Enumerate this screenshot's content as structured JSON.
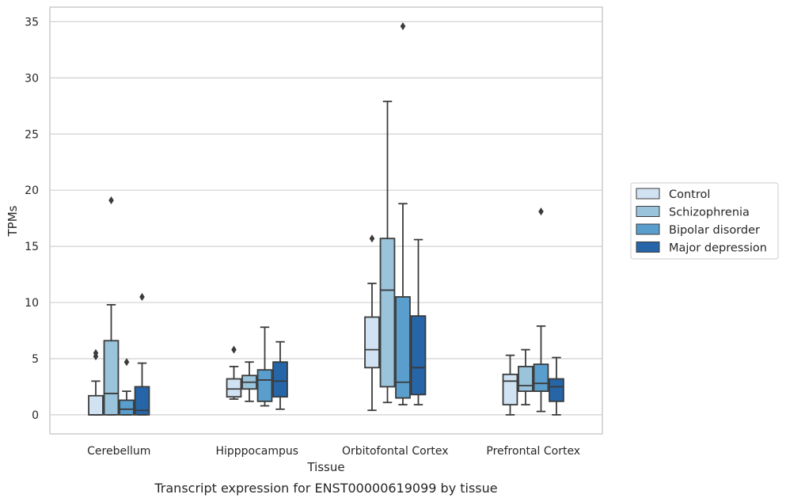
{
  "chart_data": {
    "type": "box",
    "xlabel": "Tissue",
    "ylabel": "TPMs",
    "caption": "Transcript expression for ENST00000619099 by tissue",
    "ylim": [
      -1.7,
      36.3
    ],
    "yticks": [
      0,
      5,
      10,
      15,
      20,
      25,
      30,
      35
    ],
    "grid": "horizontal",
    "legend_position": "right",
    "categories": [
      "Cerebellum",
      "Hipppocampus",
      "Orbitofontal Cortex",
      "Prefrontal Cortex"
    ],
    "series": [
      {
        "name": "Control",
        "color": "#d1e2f2",
        "boxes": [
          {
            "whislo": 0.0,
            "q1": 0.0,
            "med": 0.0,
            "q3": 1.7,
            "whishi": 3.0,
            "fliers": [
              5.2,
              5.5
            ]
          },
          {
            "whislo": 1.4,
            "q1": 1.6,
            "med": 2.3,
            "q3": 3.2,
            "whishi": 4.3,
            "fliers": [
              5.8
            ]
          },
          {
            "whislo": 0.4,
            "q1": 4.2,
            "med": 5.8,
            "q3": 8.7,
            "whishi": 11.7,
            "fliers": [
              15.7
            ]
          },
          {
            "whislo": 0.0,
            "q1": 0.9,
            "med": 3.0,
            "q3": 3.6,
            "whishi": 5.3,
            "fliers": []
          }
        ]
      },
      {
        "name": "Schizophrenia",
        "color": "#9ac3dc",
        "boxes": [
          {
            "whislo": 0.0,
            "q1": 0.0,
            "med": 1.9,
            "q3": 6.6,
            "whishi": 9.8,
            "fliers": [
              19.1
            ]
          },
          {
            "whislo": 1.2,
            "q1": 2.3,
            "med": 2.9,
            "q3": 3.5,
            "whishi": 4.7,
            "fliers": []
          },
          {
            "whislo": 1.1,
            "q1": 2.5,
            "med": 11.1,
            "q3": 15.7,
            "whishi": 27.9,
            "fliers": []
          },
          {
            "whislo": 0.9,
            "q1": 2.1,
            "med": 2.6,
            "q3": 4.3,
            "whishi": 5.8,
            "fliers": []
          }
        ]
      },
      {
        "name": "Bipolar disorder",
        "color": "#5a9ecd",
        "boxes": [
          {
            "whislo": 0.0,
            "q1": 0.0,
            "med": 0.5,
            "q3": 1.3,
            "whishi": 2.1,
            "fliers": [
              4.7
            ]
          },
          {
            "whislo": 0.8,
            "q1": 1.2,
            "med": 3.1,
            "q3": 4.0,
            "whishi": 7.8,
            "fliers": []
          },
          {
            "whislo": 0.9,
            "q1": 1.5,
            "med": 2.9,
            "q3": 10.5,
            "whishi": 18.8,
            "fliers": [
              34.6
            ]
          },
          {
            "whislo": 0.3,
            "q1": 2.1,
            "med": 2.8,
            "q3": 4.5,
            "whishi": 7.9,
            "fliers": [
              18.1
            ]
          }
        ]
      },
      {
        "name": "Major depression",
        "color": "#2565a8",
        "boxes": [
          {
            "whislo": 0.0,
            "q1": 0.0,
            "med": 0.4,
            "q3": 2.5,
            "whishi": 4.6,
            "fliers": [
              10.5
            ]
          },
          {
            "whislo": 0.5,
            "q1": 1.6,
            "med": 3.0,
            "q3": 4.7,
            "whishi": 6.5,
            "fliers": []
          },
          {
            "whislo": 0.9,
            "q1": 1.8,
            "med": 4.2,
            "q3": 8.8,
            "whishi": 15.6,
            "fliers": []
          },
          {
            "whislo": 0.0,
            "q1": 1.2,
            "med": 2.5,
            "q3": 3.2,
            "whishi": 5.1,
            "fliers": []
          }
        ]
      }
    ]
  }
}
